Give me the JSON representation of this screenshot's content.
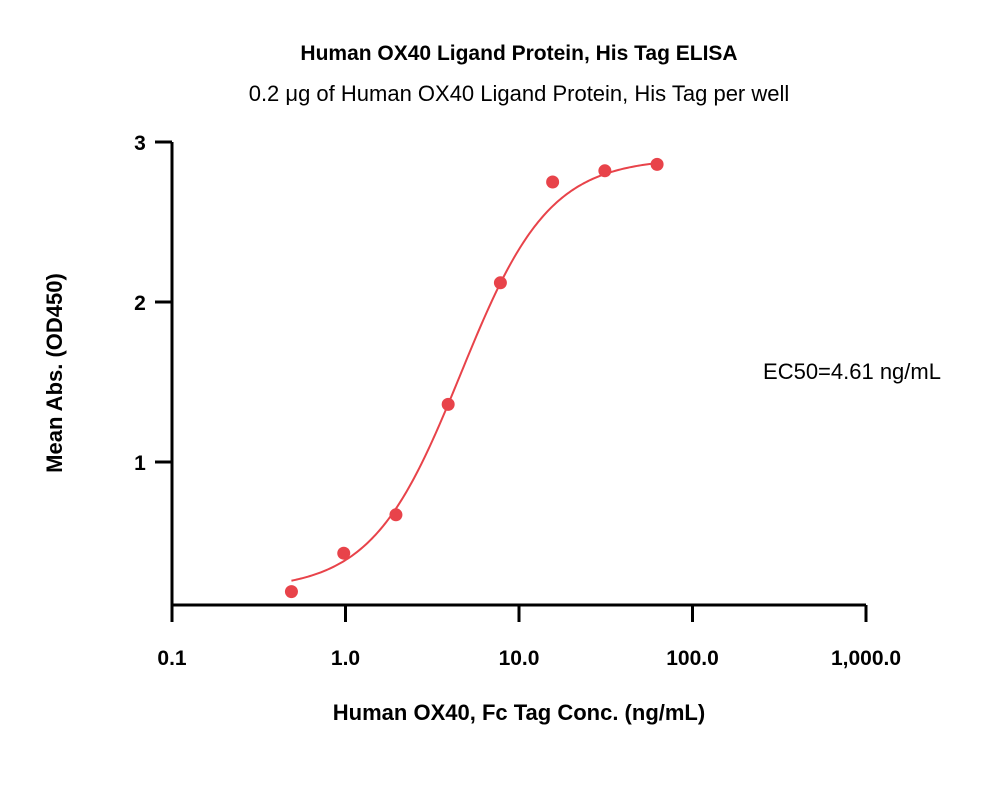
{
  "chart_data": {
    "type": "scatter",
    "title": "Human OX40 Ligand Protein, His Tag ELISA",
    "subtitle": "0.2 μg of Human OX40 Ligand Protein, His Tag per well",
    "xlabel": "Human OX40, Fc Tag Conc. (ng/mL)",
    "ylabel": "Mean Abs. (OD450)",
    "x_scale": "log",
    "xlim": [
      0.1,
      1000
    ],
    "ylim": [
      0.1,
      3
    ],
    "x_ticks": [
      0.1,
      1,
      10,
      100,
      1000
    ],
    "x_tick_labels": [
      "0.1",
      "1.0",
      "10.0",
      "100.0",
      "1,000.0"
    ],
    "y_ticks": [
      1,
      2,
      3
    ],
    "y_tick_labels": [
      "1",
      "2",
      "3"
    ],
    "grid": false,
    "series": [
      {
        "color": "#e8434a",
        "x": [
          0.488,
          0.977,
          1.953,
          3.906,
          7.813,
          15.625,
          31.25,
          62.5
        ],
        "y": [
          0.19,
          0.43,
          0.67,
          1.36,
          2.12,
          2.75,
          2.82,
          2.86
        ]
      }
    ],
    "fit": {
      "color": "#e8434a",
      "bottom": 0.2,
      "top": 2.9,
      "ec50": 4.61,
      "hill": 1.7,
      "x_range": [
        0.488,
        62.5
      ]
    },
    "annotation": "EC50=4.61 ng/mL"
  }
}
